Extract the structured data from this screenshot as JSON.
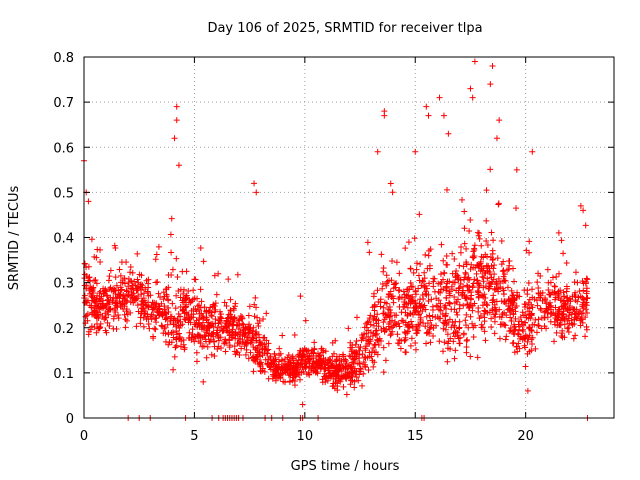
{
  "chart_data": {
    "type": "scatter",
    "title": "Day 106 of 2025, SRMTID for receiver tlpa",
    "xlabel": "GPS time / hours",
    "ylabel": "SRMTID / TECUs",
    "xlim": [
      0,
      24
    ],
    "ylim": [
      0,
      0.8
    ],
    "xticks": [
      0,
      5,
      10,
      15,
      20
    ],
    "yticks": [
      0,
      0.1,
      0.2,
      0.3,
      0.4,
      0.5,
      0.6,
      0.7,
      0.8
    ],
    "xtick_labels": [
      "0",
      "5",
      "10",
      "15",
      "20"
    ],
    "ytick_labels": [
      "0",
      "0.1",
      "0.2",
      "0.3",
      "0.4",
      "0.5",
      "0.6",
      "0.7",
      "0.8"
    ],
    "grid": true,
    "marker": "+",
    "color": "#ff0000",
    "envelope": {
      "hours": [
        0,
        0.5,
        1,
        1.5,
        2,
        2.5,
        3,
        3.5,
        4,
        4.5,
        5,
        5.5,
        6,
        6.5,
        7,
        7.5,
        8,
        8.5,
        9,
        9.5,
        10,
        10.5,
        11,
        11.5,
        12,
        12.5,
        13,
        13.5,
        14,
        14.5,
        15,
        15.5,
        16,
        16.5,
        17,
        17.5,
        18,
        18.5,
        19,
        19.5,
        20,
        20.5,
        21,
        21.5,
        22,
        22.5,
        22.8
      ],
      "typical_srmtid": [
        0.3,
        0.24,
        0.25,
        0.26,
        0.28,
        0.27,
        0.25,
        0.24,
        0.2,
        0.24,
        0.22,
        0.2,
        0.22,
        0.2,
        0.19,
        0.18,
        0.14,
        0.12,
        0.1,
        0.11,
        0.13,
        0.12,
        0.11,
        0.1,
        0.11,
        0.12,
        0.18,
        0.2,
        0.25,
        0.24,
        0.24,
        0.26,
        0.25,
        0.24,
        0.26,
        0.28,
        0.3,
        0.3,
        0.27,
        0.22,
        0.2,
        0.24,
        0.26,
        0.24,
        0.24,
        0.24,
        0.26
      ],
      "spread": [
        0.12,
        0.09,
        0.08,
        0.09,
        0.1,
        0.09,
        0.08,
        0.09,
        0.14,
        0.12,
        0.1,
        0.09,
        0.1,
        0.09,
        0.08,
        0.08,
        0.08,
        0.06,
        0.05,
        0.05,
        0.05,
        0.05,
        0.04,
        0.05,
        0.07,
        0.08,
        0.12,
        0.14,
        0.14,
        0.13,
        0.14,
        0.15,
        0.14,
        0.15,
        0.17,
        0.18,
        0.18,
        0.18,
        0.15,
        0.12,
        0.12,
        0.12,
        0.11,
        0.1,
        0.1,
        0.1,
        0.1
      ]
    },
    "notable_points": [
      {
        "x": 0.0,
        "y": 0.57
      },
      {
        "x": 0.1,
        "y": 0.5
      },
      {
        "x": 0.2,
        "y": 0.48
      },
      {
        "x": 4.2,
        "y": 0.69
      },
      {
        "x": 4.2,
        "y": 0.66
      },
      {
        "x": 4.1,
        "y": 0.62
      },
      {
        "x": 4.3,
        "y": 0.56
      },
      {
        "x": 5.4,
        "y": 0.08
      },
      {
        "x": 7.7,
        "y": 0.52
      },
      {
        "x": 7.8,
        "y": 0.5
      },
      {
        "x": 9.8,
        "y": 0.27
      },
      {
        "x": 9.9,
        "y": 0.03
      },
      {
        "x": 13.3,
        "y": 0.59
      },
      {
        "x": 13.6,
        "y": 0.68
      },
      {
        "x": 13.6,
        "y": 0.67
      },
      {
        "x": 15.0,
        "y": 0.59
      },
      {
        "x": 15.5,
        "y": 0.69
      },
      {
        "x": 15.6,
        "y": 0.67
      },
      {
        "x": 16.1,
        "y": 0.71
      },
      {
        "x": 16.3,
        "y": 0.67
      },
      {
        "x": 16.5,
        "y": 0.63
      },
      {
        "x": 17.5,
        "y": 0.73
      },
      {
        "x": 17.6,
        "y": 0.71
      },
      {
        "x": 17.7,
        "y": 0.79
      },
      {
        "x": 18.4,
        "y": 0.74
      },
      {
        "x": 18.5,
        "y": 0.78
      },
      {
        "x": 18.7,
        "y": 0.62
      },
      {
        "x": 18.8,
        "y": 0.66
      },
      {
        "x": 19.6,
        "y": 0.55
      },
      {
        "x": 20.3,
        "y": 0.59
      },
      {
        "x": 20.1,
        "y": 0.06
      },
      {
        "x": 22.5,
        "y": 0.47
      },
      {
        "x": 22.6,
        "y": 0.46
      }
    ],
    "zero_markers": {
      "hours": [
        2.0,
        2.5,
        3.0,
        4.6,
        5.8,
        6.1,
        6.3,
        6.4,
        6.5,
        6.6,
        6.7,
        6.8,
        6.9,
        7.0,
        7.2,
        8.2,
        8.5,
        9.0,
        9.8,
        9.9,
        10.6,
        15.3,
        15.4,
        22.8
      ],
      "value": 0
    }
  }
}
